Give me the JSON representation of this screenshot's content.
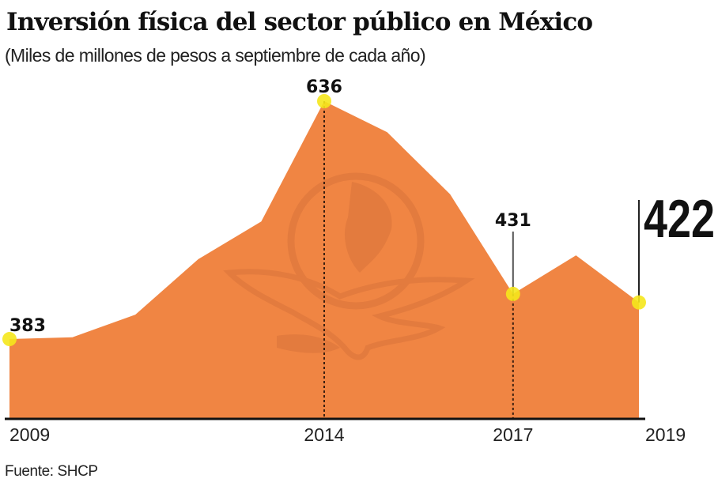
{
  "chart_data": {
    "type": "area",
    "title": "Inversión física del sector público en México",
    "subtitle": "(Miles de millones de pesos a septiembre de cada año)",
    "source": "Fuente: SHCP",
    "xlabel": "",
    "ylabel": "",
    "x": [
      2009,
      2010,
      2011,
      2012,
      2013,
      2014,
      2015,
      2016,
      2017,
      2018,
      2019
    ],
    "values": [
      383,
      385,
      409,
      468,
      508,
      636,
      603,
      537,
      431,
      472,
      422
    ],
    "ylim": [
      299,
      640
    ],
    "tick_labels": [
      "2009",
      "2014",
      "2017",
      "2019"
    ],
    "tick_years": [
      2009,
      2014,
      2017,
      2019
    ],
    "annotations": [
      {
        "year": 2009,
        "label": "383",
        "style": "plain"
      },
      {
        "year": 2014,
        "label": "636",
        "style": "dotted-drop"
      },
      {
        "year": 2017,
        "label": "431",
        "style": "leader-and-dotted-drop"
      },
      {
        "year": 2019,
        "label": "422",
        "style": "big-leader"
      }
    ],
    "grid": false,
    "legend": "none",
    "colors": {
      "area": "#f08543",
      "marker": "#f5e71c",
      "axis": "#111111",
      "watermark": "#d9733a"
    }
  }
}
